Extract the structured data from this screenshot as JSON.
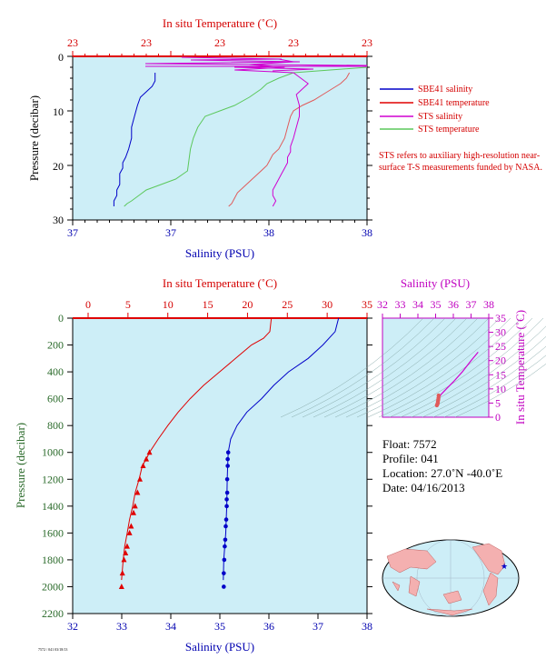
{
  "colors": {
    "plot_bg": "#cdeef7",
    "salinity": "#0000c8",
    "temperature": "#e00000",
    "sts_salinity": "#d000d0",
    "sts_temperature": "#5cc85c",
    "sts_salinity_profile": "#e05a5a",
    "label_red": "#d40000",
    "label_blue": "#0000b0",
    "label_green": "#2a6a2a",
    "label_magenta": "#c000c0"
  },
  "chart_data": [
    {
      "id": "near_surface",
      "type": "line",
      "title": "",
      "top_axis_label": "In situ Temperature (˚C)",
      "top_ticks": [
        "23",
        "23",
        "23",
        "23",
        "23"
      ],
      "xlabel": "Salinity (PSU)",
      "x_ticks": [
        "37",
        "37",
        "38",
        "38"
      ],
      "ylabel": "Pressure (decibar)",
      "y_ticks": [
        "0",
        "10",
        "20",
        "30"
      ],
      "ylim": [
        30,
        0
      ],
      "x_range": [
        37.0,
        38.0
      ],
      "top_range": [
        23.0,
        23.2
      ],
      "legend_position": "right",
      "legend": [
        {
          "label": "SBE41 salinity",
          "color": "#0000c8"
        },
        {
          "label": "SBE41 temperature",
          "color": "#e00000"
        },
        {
          "label": "STS salinity",
          "color": "#d000d0"
        },
        {
          "label": "STS temperature",
          "color": "#5cc85c"
        }
      ],
      "note": "STS refers to auxiliary high-resolution near-surface T-S measurements funded by NASA.",
      "series": [
        {
          "key": "sbe_salinity",
          "axis": "bottom",
          "color": "#0000c8",
          "x": [
            37.28,
            37.28,
            37.27,
            37.25,
            37.23,
            37.22,
            37.21,
            37.2,
            37.2,
            37.19,
            37.18,
            37.17,
            37.17,
            37.16,
            37.16,
            37.16,
            37.15,
            37.15,
            37.14,
            37.14
          ],
          "y": [
            3.0,
            4.5,
            5.5,
            6.5,
            7.5,
            9.0,
            11.0,
            13.0,
            15.0,
            17.0,
            18.5,
            19.5,
            20.5,
            21.5,
            22.5,
            23.5,
            24.5,
            25.5,
            26.5,
            27.5
          ]
        },
        {
          "key": "sts_temperature",
          "axis": "top",
          "color": "#5cc85c",
          "x": [
            23.2,
            23.15,
            23.14,
            23.132,
            23.128,
            23.12,
            23.11,
            23.1,
            23.09,
            23.085,
            23.082,
            23.08,
            23.079,
            23.078,
            23.07,
            23.06,
            23.05,
            23.045,
            23.04,
            23.037,
            23.035
          ],
          "y": [
            2.0,
            3.0,
            4.0,
            5.0,
            6.0,
            7.5,
            9.0,
            10.0,
            11.0,
            13.0,
            15.0,
            17.0,
            19.0,
            21.0,
            22.5,
            23.5,
            24.5,
            25.5,
            26.5,
            27.0,
            27.5
          ]
        },
        {
          "key": "sts_salinity_profile",
          "axis": "bottom",
          "color": "#e05a5a",
          "x": [
            37.94,
            37.93,
            37.91,
            37.88,
            37.85,
            37.82,
            37.78,
            37.75,
            37.74,
            37.73,
            37.72,
            37.7,
            37.68,
            37.67,
            37.66,
            37.65,
            37.64,
            37.62,
            37.6,
            37.58,
            37.56,
            37.55,
            37.54,
            37.53
          ],
          "y": [
            3.0,
            4.0,
            5.0,
            6.0,
            7.0,
            8.0,
            9.0,
            10.0,
            11.0,
            13.0,
            15.0,
            17.0,
            18.0,
            19.0,
            20.0,
            20.5,
            21.0,
            22.0,
            23.0,
            24.0,
            25.0,
            26.0,
            27.0,
            27.5
          ]
        },
        {
          "key": "sts_salinity",
          "axis": "bottom",
          "color": "#d000d0",
          "x": [
            37.7,
            37.75,
            37.6,
            37.72,
            37.55,
            37.75,
            37.8,
            37.76,
            37.77,
            37.77,
            37.76,
            37.75,
            37.74,
            37.74,
            37.73,
            37.73,
            37.72,
            37.71,
            37.7,
            37.69,
            37.68,
            37.68,
            37.69,
            37.68
          ],
          "y": [
            0.5,
            1.0,
            1.5,
            2.0,
            2.5,
            3.0,
            5.0,
            7.0,
            9.0,
            11.0,
            13.0,
            15.0,
            16.5,
            17.5,
            18.5,
            19.5,
            20.5,
            21.5,
            22.5,
            23.5,
            24.5,
            25.5,
            26.5,
            27.5
          ]
        }
      ]
    },
    {
      "id": "full_profile",
      "type": "line",
      "title": "",
      "top_axis_label": "In situ Temperature (˚C)",
      "top_ticks": [
        "0",
        "5",
        "10",
        "15",
        "20",
        "25",
        "30",
        "35"
      ],
      "top_range": [
        0,
        35
      ],
      "xlabel": "Salinity (PSU)",
      "x_ticks": [
        "32",
        "33",
        "34",
        "35",
        "36",
        "37",
        "38"
      ],
      "x_range": [
        32,
        38
      ],
      "ylabel": "Pressure (decibar)",
      "y_ticks": [
        "0",
        "200",
        "400",
        "600",
        "800",
        "1000",
        "1200",
        "1400",
        "1600",
        "1800",
        "2000",
        "2200"
      ],
      "ylim": [
        2200,
        0
      ],
      "series": [
        {
          "key": "temperature",
          "axis": "top",
          "color": "#e00000",
          "x": [
            23.0,
            22.8,
            22.0,
            20.5,
            18.5,
            16.5,
            14.5,
            12.8,
            11.3,
            10.0,
            8.8,
            7.7,
            7.3,
            6.8,
            6.4,
            5.9,
            5.6,
            5.2,
            4.9,
            4.6,
            4.4,
            4.2
          ],
          "y": [
            0,
            100,
            150,
            200,
            300,
            400,
            500,
            600,
            700,
            800,
            900,
            1000,
            1050,
            1100,
            1200,
            1300,
            1400,
            1500,
            1600,
            1700,
            1800,
            1950
          ]
        },
        {
          "key": "salinity",
          "axis": "bottom",
          "color": "#0000c8",
          "x": [
            37.42,
            37.35,
            37.1,
            36.8,
            36.4,
            36.1,
            35.85,
            35.55,
            35.35,
            35.22,
            35.17,
            35.16,
            35.15,
            35.14,
            35.13,
            35.12,
            35.1,
            35.08,
            35.07
          ],
          "y": [
            0,
            100,
            200,
            300,
            400,
            500,
            600,
            700,
            800,
            900,
            1000,
            1100,
            1200,
            1400,
            1500,
            1600,
            1700,
            1800,
            1950
          ]
        },
        {
          "key": "temperature_markers",
          "axis": "top",
          "marker": "triangle",
          "color": "#e00000",
          "x": [
            7.7,
            7.3,
            6.9,
            6.5,
            6.2,
            5.9,
            5.7,
            5.4,
            5.2,
            4.9,
            4.7,
            4.5,
            4.3,
            4.2
          ],
          "y": [
            1000,
            1050,
            1100,
            1200,
            1300,
            1400,
            1450,
            1550,
            1600,
            1700,
            1750,
            1800,
            1900,
            2000
          ]
        },
        {
          "key": "salinity_markers",
          "axis": "bottom",
          "marker": "circle",
          "color": "#0000c8",
          "x": [
            35.17,
            35.16,
            35.16,
            35.15,
            35.15,
            35.14,
            35.14,
            35.13,
            35.12,
            35.11,
            35.1,
            35.09,
            35.08,
            35.08
          ],
          "y": [
            1000,
            1050,
            1100,
            1200,
            1300,
            1350,
            1400,
            1500,
            1550,
            1650,
            1700,
            1800,
            1900,
            2000
          ]
        }
      ]
    },
    {
      "id": "ts_diagram",
      "type": "scatter",
      "title": "",
      "top_axis_label": "Salinity (PSU)",
      "x_ticks": [
        "32",
        "33",
        "34",
        "35",
        "36",
        "37",
        "38"
      ],
      "x_range": [
        32,
        38
      ],
      "right_axis_label": "In situ Temperature (˚C)",
      "y_ticks": [
        "0",
        "5",
        "10",
        "15",
        "20",
        "25",
        "30",
        "35"
      ],
      "ylim": [
        0,
        35
      ],
      "series": [
        {
          "key": "ts_curve",
          "color": "#d000d0",
          "x": [
            35.1,
            35.15,
            35.3,
            35.6,
            36.0,
            36.5,
            37.0,
            37.4
          ],
          "y": [
            4.2,
            6,
            8,
            10,
            12.5,
            16,
            20,
            23
          ]
        },
        {
          "key": "ts_points",
          "color": "#e05a5a",
          "x": [
            35.07,
            35.1,
            35.12,
            35.13,
            35.15,
            35.16,
            35.17
          ],
          "y": [
            4.2,
            4.6,
            5.0,
            5.6,
            6.2,
            6.8,
            7.7
          ]
        }
      ]
    }
  ],
  "info": {
    "float": "Float: 7572",
    "profile": "Profile: 041",
    "location": "Location: 27.0˚N -40.0˚E",
    "date": "Date: 04/16/2013"
  },
  "map": {
    "marker_color": "#0000c8",
    "marker_lat": 27.0,
    "marker_lon": -40.0
  },
  "footer": "7572 / 041 03/18/13"
}
